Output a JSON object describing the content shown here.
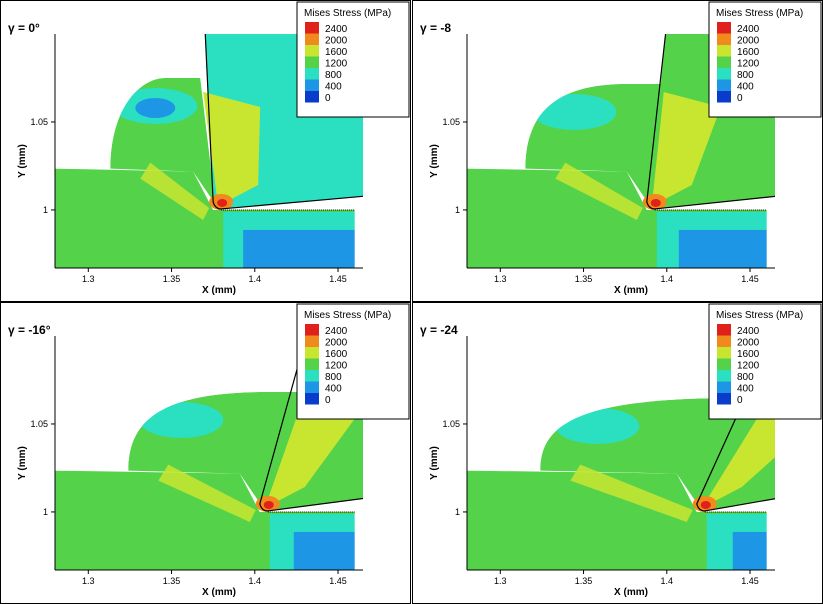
{
  "chart_data": [
    {
      "type": "heatmap",
      "panel_label": "γ = 0°",
      "rake_angle_deg": 0,
      "xlabel": "X (mm)",
      "ylabel": "Y (mm)",
      "xlim": [
        1.28,
        1.465
      ],
      "ylim": [
        0.967,
        1.1
      ],
      "x_ticks": [
        "1.3",
        "1.35",
        "1.4",
        "1.45"
      ],
      "y_ticks": [
        "1",
        "1.05"
      ],
      "legend_title": "Mises Stress (MPa)",
      "legend_levels": [
        "2400",
        "2000",
        "1600",
        "1200",
        "800",
        "400",
        "0"
      ],
      "tool_tip_x": 1.375
    },
    {
      "type": "heatmap",
      "panel_label": "γ = -8",
      "rake_angle_deg": -8,
      "xlabel": "X (mm)",
      "ylabel": "Y (mm)",
      "xlim": [
        1.28,
        1.465
      ],
      "ylim": [
        0.967,
        1.1
      ],
      "x_ticks": [
        "1.3",
        "1.35",
        "1.4",
        "1.45"
      ],
      "y_ticks": [
        "1",
        "1.05"
      ],
      "legend_title": "Mises Stress (MPa)",
      "legend_levels": [
        "2400",
        "2000",
        "1600",
        "1200",
        "800",
        "400",
        "0"
      ],
      "tool_tip_x": 1.388
    },
    {
      "type": "heatmap",
      "panel_label": "γ = -16°",
      "rake_angle_deg": -16,
      "xlabel": "X (mm)",
      "ylabel": "Y (mm)",
      "xlim": [
        1.28,
        1.465
      ],
      "ylim": [
        0.967,
        1.1
      ],
      "x_ticks": [
        "1.3",
        "1.35",
        "1.4",
        "1.45"
      ],
      "y_ticks": [
        "1",
        "1.05"
      ],
      "legend_title": "Mises Stress (MPa)",
      "legend_levels": [
        "2400",
        "2000",
        "1600",
        "1200",
        "800",
        "400",
        "0"
      ],
      "tool_tip_x": 1.403
    },
    {
      "type": "heatmap",
      "panel_label": "γ = -24",
      "rake_angle_deg": -24,
      "xlabel": "X (mm)",
      "ylabel": "Y (mm)",
      "xlim": [
        1.28,
        1.465
      ],
      "ylim": [
        0.967,
        1.1
      ],
      "x_ticks": [
        "1.3",
        "1.35",
        "1.4",
        "1.45"
      ],
      "y_ticks": [
        "1",
        "1.05"
      ],
      "legend_title": "Mises Stress (MPa)",
      "legend_levels": [
        "2400",
        "2000",
        "1600",
        "1200",
        "800",
        "400",
        "0"
      ],
      "tool_tip_x": 1.418
    }
  ],
  "colors": {
    "level_2400": "#e0201a",
    "level_2000": "#f08a1c",
    "level_1600": "#c8e630",
    "level_1200": "#54d24a",
    "level_800": "#2ae0c0",
    "level_400": "#1e96e6",
    "level_0": "#0a3ccc",
    "frame": "#000000"
  }
}
